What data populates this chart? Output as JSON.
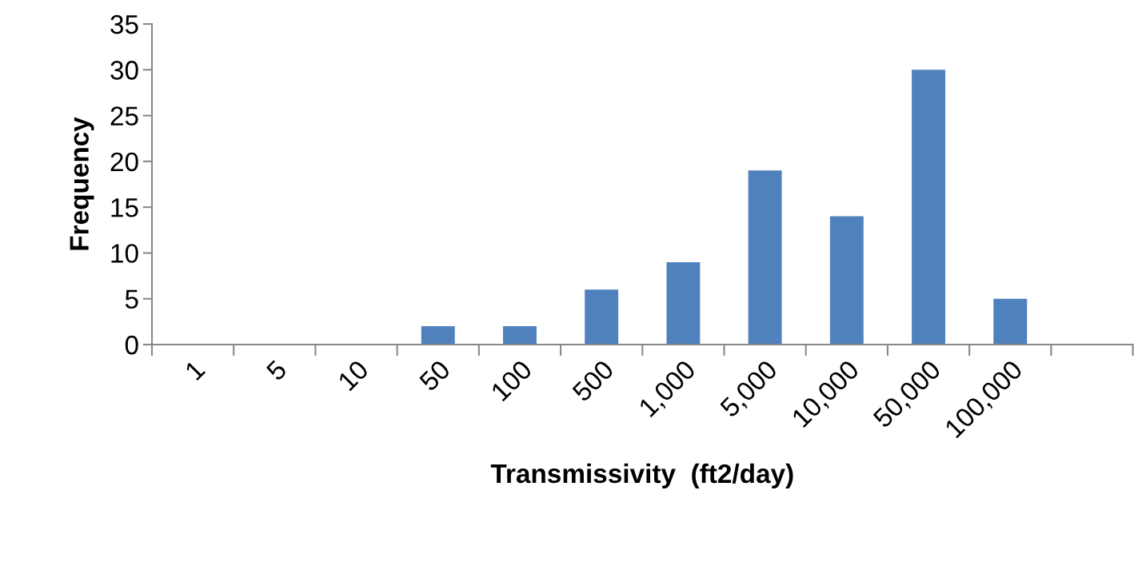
{
  "chart_data": {
    "type": "bar",
    "xlabel": "Transmissivity  (ft2/day)",
    "ylabel": "Frequency",
    "categories": [
      "1",
      "5",
      "10",
      "50",
      "100",
      "500",
      "1,000",
      "5,000",
      "10,000",
      "50,000",
      "100,000",
      null
    ],
    "values": [
      0,
      0,
      0,
      2,
      2,
      6,
      9,
      19,
      14,
      30,
      5,
      0
    ],
    "color": "#4f81bd",
    "ylim": [
      0,
      35
    ],
    "yticks": [
      0,
      5,
      10,
      15,
      20,
      25,
      30,
      35
    ],
    "grid": false,
    "legend": false
  }
}
